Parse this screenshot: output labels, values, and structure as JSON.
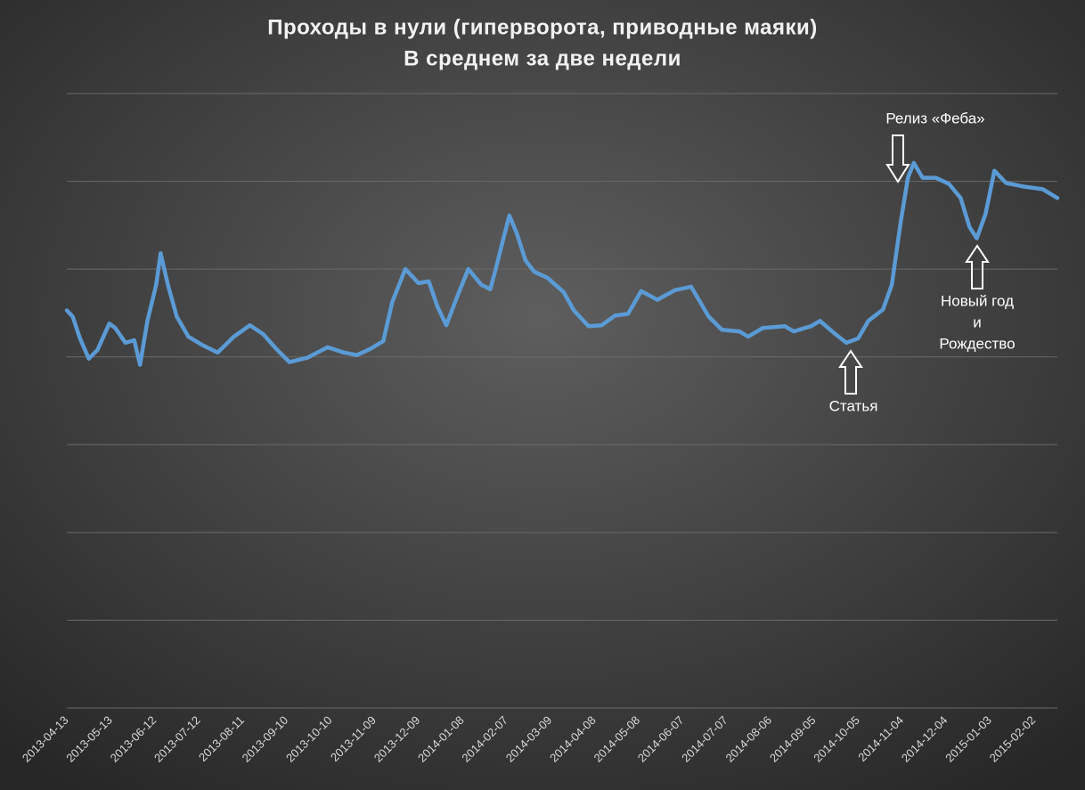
{
  "chart_data": {
    "type": "line",
    "title": [
      "Проходы в нули (гиперворота, приводные маяки)",
      "В среднем за две недели"
    ],
    "x": [
      "2013-04-13",
      "2013-04-17",
      "2013-04-22",
      "2013-04-28",
      "2013-05-04",
      "2013-05-12",
      "2013-05-16",
      "2013-05-23",
      "2013-05-29",
      "2013-06-02",
      "2013-06-07",
      "2013-06-13",
      "2013-06-16",
      "2013-06-21",
      "2013-06-27",
      "2013-07-05",
      "2013-07-15",
      "2013-07-25",
      "2013-08-05",
      "2013-08-16",
      "2013-08-25",
      "2013-09-03",
      "2013-09-12",
      "2013-09-24",
      "2013-10-08",
      "2013-10-19",
      "2013-10-28",
      "2013-11-06",
      "2013-11-15",
      "2013-11-21",
      "2013-11-30",
      "2013-12-09",
      "2013-12-16",
      "2013-12-22",
      "2013-12-28",
      "2014-01-04",
      "2014-01-12",
      "2014-01-21",
      "2014-01-27",
      "2014-01-31",
      "2014-02-05",
      "2014-02-09",
      "2014-02-14",
      "2014-02-20",
      "2014-02-26",
      "2014-03-07",
      "2014-03-18",
      "2014-03-25",
      "2014-04-04",
      "2014-04-13",
      "2014-04-22",
      "2014-05-01",
      "2014-05-10",
      "2014-05-21",
      "2014-06-02",
      "2014-06-13",
      "2014-06-25",
      "2014-07-04",
      "2014-07-16",
      "2014-07-22",
      "2014-08-01",
      "2014-08-16",
      "2014-08-22",
      "2014-09-03",
      "2014-09-09",
      "2014-09-18",
      "2014-09-27",
      "2014-10-05",
      "2014-10-12",
      "2014-10-22",
      "2014-10-28",
      "2014-11-03",
      "2014-11-08",
      "2014-11-12",
      "2014-11-18",
      "2014-11-27",
      "2014-12-06",
      "2014-12-14",
      "2014-12-20",
      "2014-12-25",
      "2014-12-31",
      "2015-01-06",
      "2015-01-14",
      "2015-01-26",
      "2015-02-08",
      "2015-02-18"
    ],
    "series": [
      {
        "color": "#5b9bd5",
        "values": [
          4.53,
          4.46,
          4.21,
          3.98,
          4.08,
          4.38,
          4.33,
          4.16,
          4.19,
          3.91,
          4.41,
          4.82,
          5.18,
          4.82,
          4.46,
          4.23,
          4.13,
          4.05,
          4.23,
          4.36,
          4.26,
          4.09,
          3.94,
          3.99,
          4.11,
          4.05,
          4.02,
          4.09,
          4.18,
          4.62,
          5.0,
          4.84,
          4.86,
          4.57,
          4.36,
          4.67,
          5.0,
          4.82,
          4.77,
          5.02,
          5.35,
          5.61,
          5.41,
          5.1,
          4.97,
          4.9,
          4.74,
          4.53,
          4.35,
          4.36,
          4.47,
          4.49,
          4.75,
          4.65,
          4.76,
          4.8,
          4.46,
          4.31,
          4.29,
          4.23,
          4.33,
          4.35,
          4.29,
          4.35,
          4.41,
          4.28,
          4.16,
          4.21,
          4.41,
          4.54,
          4.82,
          5.53,
          6.04,
          6.21,
          6.04,
          6.04,
          5.97,
          5.81,
          5.48,
          5.35,
          5.63,
          6.12,
          5.98,
          5.94,
          5.91,
          5.81
        ]
      }
    ],
    "xlim": [
      "2013-04-13",
      "2015-02-18"
    ],
    "xticks": [
      "2013-04-13",
      "2013-05-13",
      "2013-06-12",
      "2013-07-12",
      "2013-08-11",
      "2013-09-10",
      "2013-10-10",
      "2013-11-09",
      "2013-12-09",
      "2014-01-08",
      "2014-02-07",
      "2014-03-09",
      "2014-04-08",
      "2014-05-08",
      "2014-06-07",
      "2014-07-07",
      "2014-08-06",
      "2014-09-05",
      "2014-10-05",
      "2014-11-04",
      "2014-12-04",
      "2015-01-03",
      "2015-02-02"
    ],
    "ylim": [
      0,
      7
    ],
    "ygrid": [
      1,
      2,
      3,
      4,
      5,
      6,
      7
    ],
    "grid": true,
    "annotations": [
      {
        "lines": [
          "Релиз «Феба»"
        ]
      },
      {
        "lines": [
          "Статья"
        ]
      },
      {
        "lines": [
          "Новый год",
          "и",
          "Рождество"
        ]
      }
    ]
  }
}
